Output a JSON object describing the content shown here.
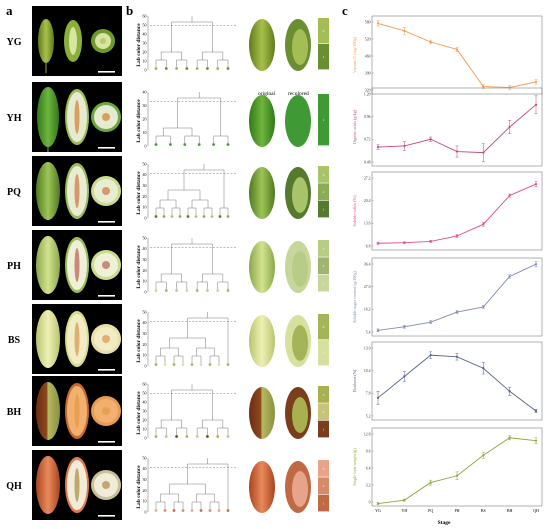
{
  "panels": {
    "a": "a",
    "b": "b",
    "c": "c"
  },
  "stages": [
    "YG",
    "YH",
    "PQ",
    "PH",
    "BS",
    "BH",
    "QH"
  ],
  "panel_b": {
    "col_original": "original",
    "col_recolored": "recolored",
    "axis_label": "Lab color distance",
    "rows": [
      {
        "ticks": [
          "0",
          "10",
          "20",
          "30",
          "40",
          "50",
          "60"
        ],
        "fruit": "#7a9a3a",
        "swatches": [
          {
            "c": "#a4bd55",
            "n": "2"
          },
          {
            "c": "#6a8f33",
            "n": "1"
          }
        ],
        "leaves": [
          "#9ab24a",
          "#6d8a2e",
          "#9ab24a",
          "#6d8a2e",
          "#9ab24a",
          "#6d8a2e",
          "#9ab24a",
          "#6d8a2e"
        ]
      },
      {
        "ticks": [
          "0",
          "10",
          "20",
          "30",
          "40"
        ],
        "fruit": "#3f8f2e",
        "swatches": [
          {
            "c": "#3f9a35",
            "n": "1"
          }
        ],
        "leaves": [
          "#3f9a35",
          "#3f9a35",
          "#3f9a35",
          "#3f9a35",
          "#3f9a35",
          "#3f9a35"
        ]
      },
      {
        "ticks": [
          "0",
          "10",
          "20",
          "30",
          "40",
          "50"
        ],
        "fruit": "#7aa24a",
        "swatches": [
          {
            "c": "#a9c36b",
            "n": "3"
          },
          {
            "c": "#8cab55",
            "n": "2"
          },
          {
            "c": "#557a2e",
            "n": "1"
          }
        ],
        "leaves": [
          "#557a2e",
          "#8cab55",
          "#a9c36b",
          "#8cab55",
          "#557a2e",
          "#a9c36b",
          "#8cab55",
          "#a9c36b",
          "#557a2e",
          "#8cab55"
        ]
      },
      {
        "ticks": [
          "0",
          "10",
          "20",
          "30",
          "40",
          "50"
        ],
        "fruit": "#b4ca7a",
        "swatches": [
          {
            "c": "#b7cc84",
            "n": "3"
          },
          {
            "c": "#a0b46e",
            "n": "2"
          },
          {
            "c": "#c7d69a",
            "n": "1"
          }
        ],
        "leaves": [
          "#c7d69a",
          "#a0b46e",
          "#b7cc84",
          "#c7d69a",
          "#a0b46e",
          "#b7cc84",
          "#c7d69a",
          "#a0b46e"
        ]
      },
      {
        "ticks": [
          "0",
          "10",
          "20",
          "30",
          "40",
          "50"
        ],
        "fruit": "#d5dc9a",
        "swatches": [
          {
            "c": "#a3b558",
            "n": "2"
          },
          {
            "c": "#d8e0a0",
            "n": "1"
          }
        ],
        "leaves": [
          "#a3b558",
          "#d8e0a0",
          "#a3b558",
          "#d8e0a0",
          "#a3b558",
          "#d8e0a0",
          "#a3b558",
          "#d8e0a0",
          "#a3b558"
        ]
      },
      {
        "ticks": [
          "0",
          "10",
          "20",
          "30",
          "40",
          "50",
          "60"
        ],
        "fruit": "#a4a05a",
        "swatches": [
          {
            "c": "#a8b050",
            "n": "3"
          },
          {
            "c": "#c8c37a",
            "n": "2"
          },
          {
            "c": "#7a3e1c",
            "n": "1"
          }
        ],
        "leaves": [
          "#a8b050",
          "#c8c37a",
          "#7a3e1c",
          "#a8b050",
          "#c8c37a",
          "#7a3e1c",
          "#a8b050",
          "#c8c37a"
        ]
      },
      {
        "ticks": [
          "0",
          "10",
          "20",
          "30",
          "40",
          "50"
        ],
        "fruit": "#c9754e",
        "swatches": [
          {
            "c": "#e8a48a",
            "n": "3"
          },
          {
            "c": "#d8896a",
            "n": "2"
          },
          {
            "c": "#bf6a44",
            "n": "1"
          }
        ],
        "leaves": [
          "#e8a48a",
          "#d8896a",
          "#bf6a44",
          "#d8896a",
          "#e8a48a",
          "#bf6a44",
          "#d8896a",
          "#e8a48a",
          "#bf6a44"
        ]
      }
    ]
  },
  "colors": {
    "c1": "#f39a52",
    "c2": "#c94a72",
    "c3": "#e3507a",
    "c4": "#7f8ab8",
    "c5": "#56638f",
    "c6": "#8aa63c"
  },
  "chart_data": [
    {
      "type": "line",
      "ylabel": "Vitamin C (mg/100g)",
      "categories": [
        "YG",
        "YH",
        "PQ",
        "PH",
        "BS",
        "BH",
        "QH"
      ],
      "values": [
        560,
        520,
        460,
        420,
        220,
        215,
        245
      ],
      "errors": [
        14,
        18,
        10,
        12,
        10,
        10,
        12
      ],
      "ylim": [
        180,
        600
      ],
      "ticks": [
        "320",
        "390",
        "460",
        "520",
        "580"
      ],
      "color": "#f39a52"
    },
    {
      "type": "line",
      "ylabel": "Organic acids (g/kg)",
      "categories": [
        "YG",
        "YH",
        "PQ",
        "PH",
        "BS",
        "BH",
        "QH"
      ],
      "values": [
        0.72,
        0.73,
        0.79,
        0.68,
        0.67,
        0.9,
        1.1
      ],
      "errors": [
        0.02,
        0.04,
        0.02,
        0.05,
        0.08,
        0.06,
        0.08
      ],
      "ylim": [
        0.55,
        1.25
      ],
      "ticks": [
        "0.48",
        "0.72",
        "0.96",
        "1.20"
      ],
      "color": "#c94a72"
    },
    {
      "type": "line",
      "ylabel": "Soluble solids (%)",
      "categories": [
        "YG",
        "YH",
        "PQ",
        "PH",
        "BS",
        "BH",
        "QH"
      ],
      "values": [
        6.6,
        6.8,
        7.2,
        8.9,
        12.6,
        21.6,
        25.2
      ],
      "errors": [
        0.3,
        0.3,
        0.3,
        0.4,
        0.6,
        0.5,
        0.8
      ],
      "ylim": [
        4.5,
        29
      ],
      "ticks": [
        "6.8",
        "13.6",
        "20.4",
        "27.2"
      ],
      "color": "#e3507a"
    },
    {
      "type": "line",
      "ylabel": "Soluble sugar content (g/100g)",
      "categories": [
        "YG",
        "YH",
        "PQ",
        "PH",
        "BS",
        "BH",
        "QH"
      ],
      "values": [
        3.2,
        5.2,
        7.8,
        13.5,
        16.4,
        33.6,
        40.5
      ],
      "errors": [
        0.8,
        0.8,
        0.8,
        0.8,
        0.8,
        1.0,
        1.5
      ],
      "ylim": [
        0,
        44
      ],
      "ticks": [
        "5.4",
        "16.2",
        "27.0",
        "36.4"
      ],
      "color": "#7f8ab8"
    },
    {
      "type": "line",
      "ylabel": "Hardness (N)",
      "categories": [
        "YG",
        "YH",
        "PQ",
        "PH",
        "BS",
        "BH",
        "QH"
      ],
      "values": [
        8.2,
        10.8,
        13.4,
        13.2,
        11.8,
        9.0,
        6.6
      ],
      "errors": [
        0.8,
        0.6,
        0.4,
        0.4,
        0.7,
        0.5,
        0.2
      ],
      "ylim": [
        5.5,
        15
      ],
      "ticks": [
        "5.2",
        "7.8",
        "10.4",
        "13.0"
      ],
      "color": "#56638f"
    },
    {
      "type": "line",
      "ylabel": "Single fruit weight (g)",
      "categories": [
        "YG",
        "YH",
        "PQ",
        "PH",
        "BS",
        "BH",
        "QH"
      ],
      "values": [
        0.5,
        1.2,
        4.8,
        6.2,
        10.4,
        14.0,
        13.4
      ],
      "errors": [
        0.2,
        0.2,
        0.5,
        0.8,
        0.6,
        0.4,
        0.6
      ],
      "ylim": [
        0,
        16
      ],
      "ticks": [
        "0",
        "3.2",
        "6.4",
        "9.6",
        "12.8"
      ],
      "color": "#8aa63c"
    }
  ],
  "panel_c": {
    "xlabel": "Stage",
    "xticks": [
      "YG",
      "YH",
      "PQ",
      "PH",
      "BS",
      "BH",
      "QH"
    ]
  }
}
